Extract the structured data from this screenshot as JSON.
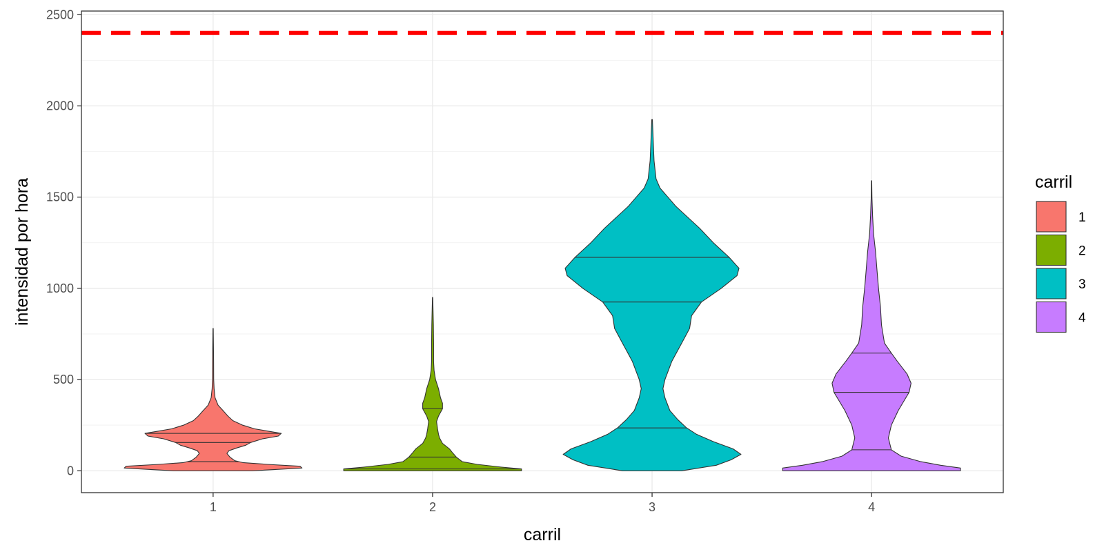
{
  "chart_data": {
    "type": "violin",
    "xlabel": "carril",
    "ylabel": "intensidad por hora",
    "ylim": [
      -120,
      2520
    ],
    "yticks": [
      0,
      500,
      1000,
      1500,
      2000,
      2500
    ],
    "ytick_labels": [
      "0",
      "500",
      "1000",
      "1500",
      "2000",
      "2500"
    ],
    "categories": [
      "1",
      "2",
      "3",
      "4"
    ],
    "grid": true,
    "legend": {
      "title": "carril",
      "position": "right"
    },
    "reference_line": {
      "y": 2400,
      "color": "#ff0000",
      "style": "dashed"
    },
    "series": [
      {
        "name": "1",
        "color": "#f8766d",
        "quantiles": [
          50,
          155,
          205
        ],
        "profile": [
          [
            0,
            0.4
          ],
          [
            15,
            0.9
          ],
          [
            25,
            0.88
          ],
          [
            35,
            0.55
          ],
          [
            45,
            0.3
          ],
          [
            55,
            0.22
          ],
          [
            75,
            0.17
          ],
          [
            95,
            0.14
          ],
          [
            110,
            0.16
          ],
          [
            125,
            0.24
          ],
          [
            140,
            0.33
          ],
          [
            155,
            0.38
          ],
          [
            175,
            0.5
          ],
          [
            190,
            0.66
          ],
          [
            205,
            0.69
          ],
          [
            215,
            0.58
          ],
          [
            230,
            0.42
          ],
          [
            250,
            0.3
          ],
          [
            275,
            0.2
          ],
          [
            300,
            0.15
          ],
          [
            330,
            0.1
          ],
          [
            360,
            0.05
          ],
          [
            400,
            0.02
          ],
          [
            450,
            0.01
          ],
          [
            500,
            0.006
          ],
          [
            600,
            0.005
          ],
          [
            780,
            0.002
          ]
        ]
      },
      {
        "name": "2",
        "color": "#7cae00",
        "quantiles": [
          10,
          75,
          340
        ],
        "profile": [
          [
            0,
            0.9
          ],
          [
            10,
            0.9
          ],
          [
            20,
            0.7
          ],
          [
            35,
            0.45
          ],
          [
            50,
            0.3
          ],
          [
            75,
            0.24
          ],
          [
            100,
            0.2
          ],
          [
            120,
            0.17
          ],
          [
            150,
            0.1
          ],
          [
            180,
            0.07
          ],
          [
            200,
            0.06
          ],
          [
            230,
            0.05
          ],
          [
            270,
            0.04
          ],
          [
            300,
            0.06
          ],
          [
            340,
            0.1
          ],
          [
            370,
            0.1
          ],
          [
            400,
            0.08
          ],
          [
            450,
            0.06
          ],
          [
            500,
            0.03
          ],
          [
            550,
            0.015
          ],
          [
            600,
            0.01
          ],
          [
            700,
            0.01
          ],
          [
            800,
            0.008
          ],
          [
            950,
            0.002
          ]
        ]
      },
      {
        "name": "3",
        "color": "#00bfc4",
        "quantiles": [
          235,
          925,
          1170
        ],
        "profile": [
          [
            0,
            0.3
          ],
          [
            30,
            0.65
          ],
          [
            60,
            0.8
          ],
          [
            90,
            0.9
          ],
          [
            120,
            0.82
          ],
          [
            160,
            0.62
          ],
          [
            200,
            0.45
          ],
          [
            235,
            0.35
          ],
          [
            280,
            0.26
          ],
          [
            330,
            0.18
          ],
          [
            400,
            0.13
          ],
          [
            450,
            0.11
          ],
          [
            500,
            0.13
          ],
          [
            600,
            0.2
          ],
          [
            700,
            0.3
          ],
          [
            780,
            0.38
          ],
          [
            850,
            0.4
          ],
          [
            925,
            0.5
          ],
          [
            1000,
            0.7
          ],
          [
            1070,
            0.86
          ],
          [
            1110,
            0.88
          ],
          [
            1170,
            0.78
          ],
          [
            1250,
            0.62
          ],
          [
            1330,
            0.48
          ],
          [
            1400,
            0.34
          ],
          [
            1450,
            0.24
          ],
          [
            1500,
            0.16
          ],
          [
            1550,
            0.08
          ],
          [
            1600,
            0.04
          ],
          [
            1700,
            0.02
          ],
          [
            1800,
            0.012
          ],
          [
            1925,
            0.003
          ]
        ]
      },
      {
        "name": "4",
        "color": "#c77cff",
        "quantiles": [
          115,
          430,
          645
        ],
        "profile": [
          [
            0,
            0.9
          ],
          [
            15,
            0.9
          ],
          [
            30,
            0.7
          ],
          [
            50,
            0.5
          ],
          [
            80,
            0.3
          ],
          [
            115,
            0.2
          ],
          [
            180,
            0.17
          ],
          [
            250,
            0.2
          ],
          [
            330,
            0.27
          ],
          [
            430,
            0.38
          ],
          [
            480,
            0.4
          ],
          [
            530,
            0.36
          ],
          [
            600,
            0.26
          ],
          [
            645,
            0.2
          ],
          [
            700,
            0.13
          ],
          [
            800,
            0.1
          ],
          [
            900,
            0.09
          ],
          [
            1000,
            0.07
          ],
          [
            1100,
            0.055
          ],
          [
            1200,
            0.04
          ],
          [
            1300,
            0.02
          ],
          [
            1400,
            0.01
          ],
          [
            1500,
            0.004
          ],
          [
            1590,
            0.002
          ]
        ]
      }
    ]
  }
}
